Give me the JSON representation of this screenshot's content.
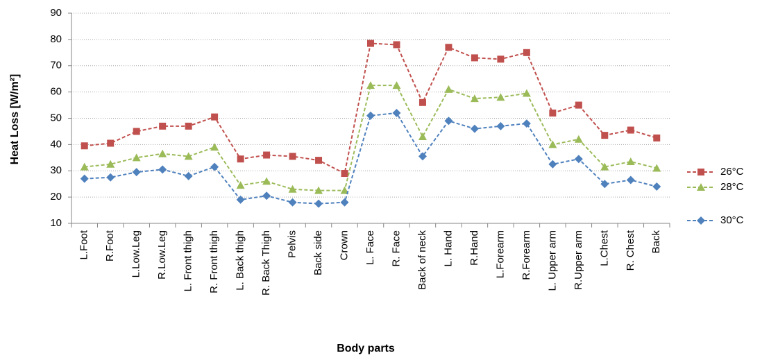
{
  "chart_data": {
    "type": "line",
    "x_label": "Body parts",
    "y_label": "Heat Loss [W/m²]",
    "categories": [
      "L.Foot",
      "R.Foot",
      "L.Low.Leg",
      "R.Low.Leg",
      "L. Front thigh",
      "R. Front thigh",
      "L. Back thigh",
      "R. Back Thigh",
      "Pelvis",
      "Back side",
      "Crown",
      "L. Face",
      "R. Face",
      "Back of neck",
      "L. Hand",
      "R.Hand",
      "L.Forearm",
      "R.Forearm",
      "L. Upper arm",
      "R.Upper arm",
      "L.Chest",
      "R. Chest",
      "Back"
    ],
    "series": [
      {
        "name": "26°C",
        "color": "#c0504d",
        "marker": "square",
        "values": [
          39.5,
          40.5,
          45,
          47,
          47,
          50.5,
          34.5,
          36,
          35.5,
          34,
          29,
          78.5,
          78,
          56,
          77,
          73,
          72.5,
          75,
          52,
          55,
          43.5,
          45.5,
          42.5
        ]
      },
      {
        "name": "28°C",
        "color": "#9bbb59",
        "marker": "triangle",
        "values": [
          31.5,
          32.5,
          35,
          36.5,
          35.5,
          39,
          24.5,
          26,
          23,
          22.5,
          22.5,
          62.5,
          62.5,
          43,
          61,
          57.5,
          58,
          59.5,
          40,
          42,
          31.5,
          33.5,
          31
        ]
      },
      {
        "name": "30°C",
        "color": "#4f81bd",
        "marker": "diamond",
        "values": [
          27,
          27.5,
          29.5,
          30.5,
          28,
          31.5,
          19,
          20.5,
          18,
          17.5,
          18,
          51,
          52,
          35.5,
          49,
          46,
          47,
          48,
          32.5,
          34.5,
          25,
          26.5,
          24
        ]
      }
    ],
    "ylim": [
      10,
      90
    ],
    "yticks": [
      10,
      20,
      30,
      40,
      50,
      60,
      70,
      80,
      90
    ],
    "grid": true,
    "legend": "right",
    "line_style": "dashed"
  }
}
